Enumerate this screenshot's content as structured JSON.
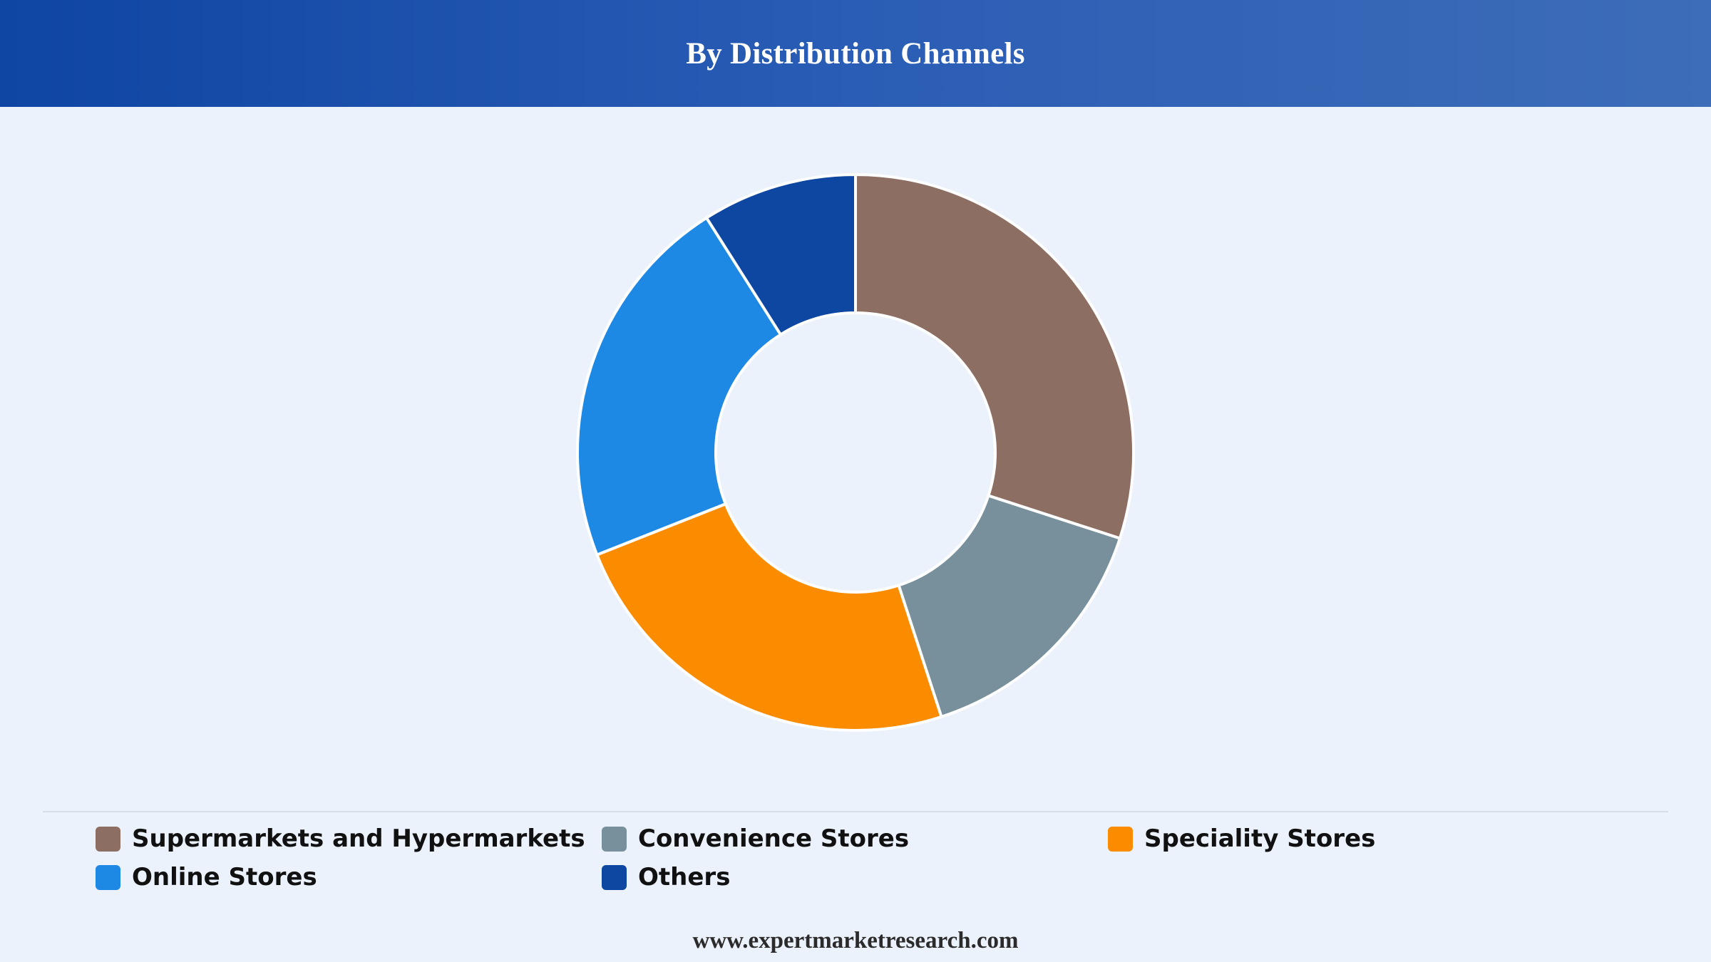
{
  "header": {
    "title": "By Distribution Channels"
  },
  "chart_data": {
    "type": "pie",
    "donut": true,
    "title": "By Distribution Channels",
    "legend_position": "bottom",
    "series": [
      {
        "name": "Supermarkets and Hypermarkets",
        "value": 30,
        "color": "#8d6e63"
      },
      {
        "name": "Convenience Stores",
        "value": 15,
        "color": "#78909c"
      },
      {
        "name": "Speciality Stores",
        "value": 24,
        "color": "#fb8c00"
      },
      {
        "name": "Online Stores",
        "value": 22,
        "color": "#1e88e5"
      },
      {
        "name": "Others",
        "value": 9,
        "color": "#0d47a1"
      }
    ]
  },
  "footer": {
    "text": "www.expertmarketresearch.com"
  }
}
